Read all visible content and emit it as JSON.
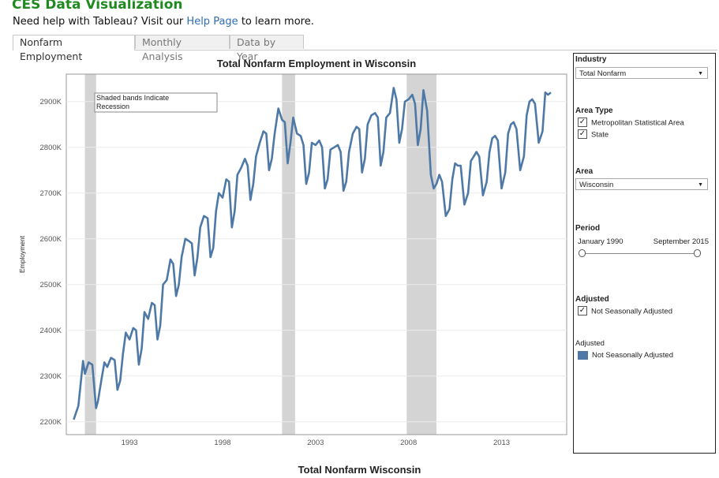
{
  "header": {
    "title": "CES Data Visualization",
    "help_prefix": "Need help with Tableau? Visit our",
    "help_link": "Help Page",
    "help_suffix": "to learn more."
  },
  "tabs": [
    {
      "label": "Nonfarm Employment",
      "active": true
    },
    {
      "label": "Monthly Analysis",
      "active": false
    },
    {
      "label": "Data by Year",
      "active": false
    }
  ],
  "footer_title": "Total Nonfarm Wisconsin",
  "filters": {
    "industry_label": "Industry",
    "industry_value": "Total Nonfarm",
    "area_type_label": "Area Type",
    "area_type_options": [
      {
        "label": "Metropolitan Statistical Area",
        "checked": true
      },
      {
        "label": "State",
        "checked": true
      }
    ],
    "area_label": "Area",
    "area_value": "Wisconsin",
    "period_label": "Period",
    "period_start": "January 1990",
    "period_end": "September 2015",
    "adjusted_label": "Adjusted",
    "adjusted_option": {
      "label": "Not Seasonally Adjusted",
      "checked": true
    },
    "legend_title": "Adjusted",
    "legend_item": "Not Seasonally Adjusted",
    "legend_color": "#4e79a7"
  },
  "chart_data": {
    "type": "line",
    "title": "Total Nonfarm Employment in Wisconsin",
    "xlabel": "",
    "ylabel": "Employment",
    "annotation": "Shaded bands Indicate\nRecession",
    "xlim": [
      1989.6,
      2016.5
    ],
    "ylim": [
      2172000,
      2960000
    ],
    "x_ticks": [
      1993,
      1998,
      2003,
      2008,
      2013
    ],
    "y_ticks": [
      {
        "value": 2200000,
        "label": "2200K"
      },
      {
        "value": 2300000,
        "label": "2300K"
      },
      {
        "value": 2400000,
        "label": "2400K"
      },
      {
        "value": 2500000,
        "label": "2500K"
      },
      {
        "value": 2600000,
        "label": "2600K"
      },
      {
        "value": 2700000,
        "label": "2700K"
      },
      {
        "value": 2800000,
        "label": "2800K"
      },
      {
        "value": 2900000,
        "label": "2900K"
      }
    ],
    "grid": true,
    "recessions": [
      {
        "start": 1990.6,
        "end": 1991.2
      },
      {
        "start": 2001.2,
        "end": 2001.9
      },
      {
        "start": 2007.9,
        "end": 2009.5
      }
    ],
    "series": [
      {
        "color": "#4e79a7",
        "x": [
          1990.0,
          1990.25,
          1990.5,
          1990.6,
          1990.8,
          1991.0,
          1991.2,
          1991.3,
          1991.5,
          1991.65,
          1991.8,
          1992.0,
          1992.2,
          1992.35,
          1992.5,
          1992.65,
          1992.8,
          1993.0,
          1993.2,
          1993.35,
          1993.5,
          1993.65,
          1993.8,
          1994.0,
          1994.2,
          1994.35,
          1994.5,
          1994.65,
          1994.8,
          1995.0,
          1995.2,
          1995.35,
          1995.5,
          1995.65,
          1995.8,
          1996.0,
          1996.2,
          1996.35,
          1996.5,
          1996.65,
          1996.8,
          1997.0,
          1997.2,
          1997.35,
          1997.5,
          1997.65,
          1997.8,
          1998.0,
          1998.2,
          1998.35,
          1998.5,
          1998.65,
          1998.8,
          1999.0,
          1999.2,
          1999.35,
          1999.5,
          1999.65,
          1999.8,
          2000.0,
          2000.2,
          2000.35,
          2000.5,
          2000.65,
          2000.8,
          2001.0,
          2001.2,
          2001.35,
          2001.5,
          2001.65,
          2001.8,
          2002.0,
          2002.2,
          2002.35,
          2002.5,
          2002.65,
          2002.8,
          2003.0,
          2003.2,
          2003.35,
          2003.5,
          2003.65,
          2003.8,
          2004.0,
          2004.2,
          2004.35,
          2004.5,
          2004.65,
          2004.8,
          2005.0,
          2005.2,
          2005.35,
          2005.5,
          2005.65,
          2005.8,
          2006.0,
          2006.2,
          2006.35,
          2006.5,
          2006.65,
          2006.8,
          2007.0,
          2007.2,
          2007.35,
          2007.5,
          2007.65,
          2007.8,
          2008.0,
          2008.2,
          2008.35,
          2008.5,
          2008.65,
          2008.8,
          2009.0,
          2009.2,
          2009.35,
          2009.5,
          2009.65,
          2009.8,
          2010.0,
          2010.2,
          2010.35,
          2010.5,
          2010.65,
          2010.8,
          2011.0,
          2011.2,
          2011.35,
          2011.5,
          2011.65,
          2011.8,
          2012.0,
          2012.2,
          2012.35,
          2012.5,
          2012.65,
          2012.8,
          2013.0,
          2013.2,
          2013.35,
          2013.5,
          2013.65,
          2013.8,
          2014.0,
          2014.2,
          2014.35,
          2014.5,
          2014.65,
          2014.8,
          2015.0,
          2015.2,
          2015.35,
          2015.5,
          2015.65
        ],
        "values": [
          2205000,
          2235000,
          2333000,
          2305000,
          2330000,
          2325000,
          2230000,
          2245000,
          2295000,
          2330000,
          2320000,
          2340000,
          2335000,
          2270000,
          2290000,
          2350000,
          2395000,
          2380000,
          2405000,
          2400000,
          2325000,
          2360000,
          2440000,
          2425000,
          2460000,
          2455000,
          2380000,
          2410000,
          2500000,
          2510000,
          2555000,
          2545000,
          2475000,
          2500000,
          2560000,
          2600000,
          2595000,
          2590000,
          2520000,
          2560000,
          2625000,
          2650000,
          2645000,
          2560000,
          2580000,
          2660000,
          2700000,
          2690000,
          2730000,
          2725000,
          2625000,
          2660000,
          2740000,
          2755000,
          2775000,
          2760000,
          2685000,
          2720000,
          2780000,
          2810000,
          2835000,
          2830000,
          2750000,
          2775000,
          2830000,
          2885000,
          2860000,
          2855000,
          2765000,
          2810000,
          2865000,
          2830000,
          2825000,
          2805000,
          2720000,
          2745000,
          2810000,
          2805000,
          2815000,
          2800000,
          2710000,
          2730000,
          2795000,
          2800000,
          2805000,
          2790000,
          2705000,
          2725000,
          2790000,
          2830000,
          2845000,
          2840000,
          2745000,
          2775000,
          2850000,
          2870000,
          2875000,
          2865000,
          2760000,
          2790000,
          2865000,
          2875000,
          2930000,
          2905000,
          2810000,
          2840000,
          2900000,
          2905000,
          2915000,
          2895000,
          2805000,
          2840000,
          2925000,
          2880000,
          2740000,
          2710000,
          2720000,
          2740000,
          2725000,
          2650000,
          2665000,
          2730000,
          2765000,
          2760000,
          2760000,
          2675000,
          2700000,
          2770000,
          2780000,
          2790000,
          2780000,
          2695000,
          2725000,
          2790000,
          2820000,
          2825000,
          2815000,
          2710000,
          2745000,
          2830000,
          2850000,
          2855000,
          2840000,
          2750000,
          2780000,
          2870000,
          2900000,
          2905000,
          2895000,
          2810000,
          2835000,
          2920000,
          2915000,
          2920000
        ]
      }
    ]
  }
}
